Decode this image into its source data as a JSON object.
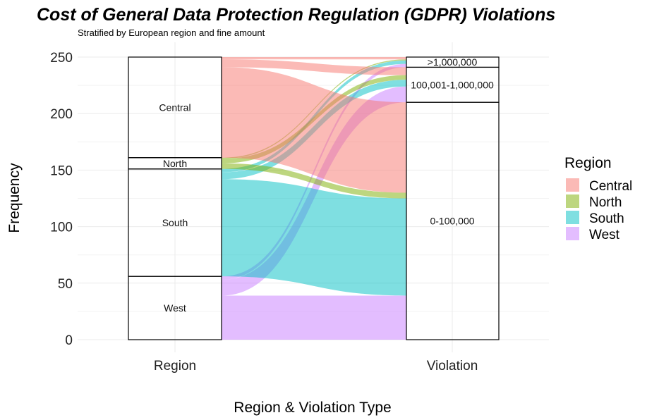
{
  "chart_data": {
    "type": "alluvial",
    "title": "Cost of General Data Protection Regulation (GDPR) Violations",
    "subtitle": "Stratified by European region and fine amount",
    "xlabel": "Region & Violation Type",
    "ylabel": "Frequency",
    "ylim": [
      0,
      250
    ],
    "y_ticks": [
      0,
      50,
      100,
      150,
      200,
      250
    ],
    "axes": [
      "Region",
      "Violation"
    ],
    "legend": {
      "title": "Region",
      "placement": "right",
      "entries": [
        "Central",
        "North",
        "South",
        "West"
      ]
    },
    "colors": {
      "Central": "#F8766D",
      "North": "#7CAE00",
      "South": "#00BFC4",
      "West": "#C77CFF"
    },
    "strata": {
      "Region": [
        {
          "label": "West",
          "count": 56
        },
        {
          "label": "South",
          "count": 95
        },
        {
          "label": "North",
          "count": 10
        },
        {
          "label": "Central",
          "count": 89
        }
      ],
      "Violation": [
        {
          "label": "0-100,000",
          "count": 210
        },
        {
          "label": "100,001-1,000,000",
          "count": 31
        },
        {
          "label": ">1,000,000",
          "count": 9
        }
      ]
    },
    "flows": [
      {
        "region": "West",
        "violation": "0-100,000",
        "count": 39
      },
      {
        "region": "West",
        "violation": "100,001-1,000,000",
        "count": 14
      },
      {
        "region": "West",
        "violation": ">1,000,000",
        "count": 3
      },
      {
        "region": "South",
        "violation": "0-100,000",
        "count": 86
      },
      {
        "region": "South",
        "violation": "100,001-1,000,000",
        "count": 6
      },
      {
        "region": "South",
        "violation": ">1,000,000",
        "count": 3
      },
      {
        "region": "North",
        "violation": "0-100,000",
        "count": 5
      },
      {
        "region": "North",
        "violation": "100,001-1,000,000",
        "count": 4
      },
      {
        "region": "North",
        "violation": ">1,000,000",
        "count": 1
      },
      {
        "region": "Central",
        "violation": "0-100,000",
        "count": 80
      },
      {
        "region": "Central",
        "violation": "100,001-1,000,000",
        "count": 7
      },
      {
        "region": "Central",
        "violation": ">1,000,000",
        "count": 2
      }
    ],
    "grid": true
  }
}
